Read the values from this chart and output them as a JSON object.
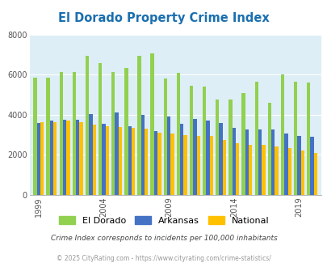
{
  "title": "El Dorado Property Crime Index",
  "title_color": "#1a6faf",
  "years": [
    1999,
    2000,
    2001,
    2002,
    2003,
    2004,
    2005,
    2006,
    2007,
    2008,
    2009,
    2010,
    2011,
    2012,
    2013,
    2014,
    2015,
    2016,
    2017,
    2018,
    2019,
    2020
  ],
  "eldorado": [
    5850,
    5850,
    6150,
    6150,
    6950,
    6600,
    6150,
    6350,
    6950,
    7050,
    5800,
    6100,
    5450,
    5400,
    4750,
    4750,
    5100,
    5650,
    4600,
    6000,
    5650,
    5600
  ],
  "arkansas": [
    3600,
    3700,
    3750,
    3750,
    4050,
    3550,
    4100,
    3450,
    4000,
    3200,
    3900,
    3550,
    3800,
    3700,
    3600,
    3350,
    3250,
    3250,
    3250,
    3050,
    2950,
    2900
  ],
  "national": [
    3650,
    3650,
    3700,
    3650,
    3500,
    3450,
    3400,
    3350,
    3300,
    3100,
    3050,
    3000,
    2950,
    2950,
    2750,
    2600,
    2500,
    2500,
    2400,
    2350,
    2200,
    2100
  ],
  "eldorado_color": "#92d050",
  "arkansas_color": "#4472c4",
  "national_color": "#ffc000",
  "plot_bg": "#ddeef6",
  "ylim": [
    0,
    8000
  ],
  "yticks": [
    0,
    2000,
    4000,
    6000,
    8000
  ],
  "tick_years": [
    1999,
    2004,
    2009,
    2014,
    2019
  ],
  "footnote1": "Crime Index corresponds to incidents per 100,000 inhabitants",
  "footnote2": "© 2025 CityRating.com - https://www.cityrating.com/crime-statistics/",
  "footnote1_color": "#444444",
  "footnote2_color": "#999999",
  "legend_labels": [
    "El Dorado",
    "Arkansas",
    "National"
  ]
}
